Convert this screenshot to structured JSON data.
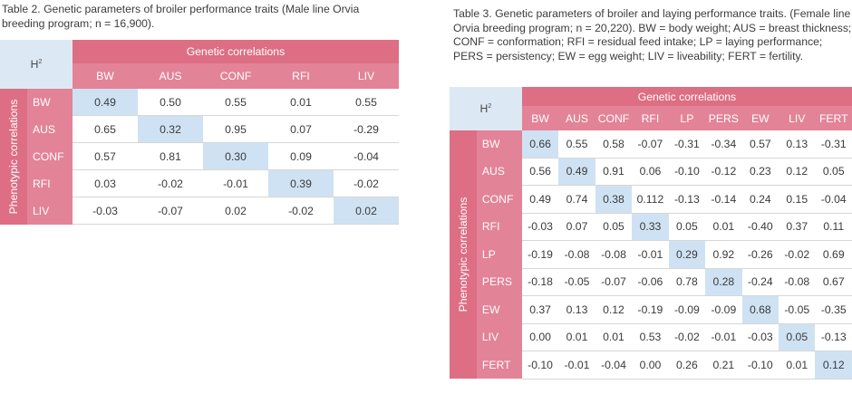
{
  "table2": {
    "caption": "Table 2. Genetic parameters of broiler performance traits (Male line Orvia breeding program; n = 16,900).",
    "h2_label": "H",
    "h2_sup": "2",
    "genetic_label": "Genetic correlations",
    "phenotypic_label": "Phenotypic correlations",
    "columns": [
      "BW",
      "AUS",
      "CONF",
      "RFI",
      "LIV"
    ],
    "rows": [
      {
        "label": "BW",
        "values": [
          "0.49",
          "0.50",
          "0.55",
          "0.01",
          "0.55"
        ]
      },
      {
        "label": "AUS",
        "values": [
          "0.65",
          "0.32",
          "0.95",
          "0.07",
          "-0.29"
        ]
      },
      {
        "label": "CONF",
        "values": [
          "0.57",
          "0.81",
          "0.30",
          "0.09",
          "-0.04"
        ]
      },
      {
        "label": "RFI",
        "values": [
          "0.03",
          "-0.02",
          "-0.01",
          "0.39",
          "-0.02"
        ]
      },
      {
        "label": "LIV",
        "values": [
          "-0.03",
          "-0.07",
          "0.02",
          "-0.02",
          "0.02"
        ]
      }
    ]
  },
  "table3": {
    "caption": "Table 3. Genetic parameters of broiler and laying performance traits. (Female line Orvia breeding program; n = 20,220). BW = body weight; AUS = breast thickness; CONF = conformation; RFI = residual feed intake; LP = laying performance; PERS = persistency; EW = egg weight; LIV = liveability; FERT = fertility.",
    "h2_label": "H",
    "h2_sup": "2",
    "genetic_label": "Genetic correlations",
    "phenotypic_label": "Phenotypic correlations",
    "columns": [
      "BW",
      "AUS",
      "CONF",
      "RFI",
      "LP",
      "PERS",
      "EW",
      "LIV",
      "FERT"
    ],
    "rows": [
      {
        "label": "BW",
        "values": [
          "0.66",
          "0.55",
          "0.58",
          "-0.07",
          "-0.31",
          "-0.34",
          "0.57",
          "0.13",
          "-0.31"
        ]
      },
      {
        "label": "AUS",
        "values": [
          "0.56",
          "0.49",
          "0.91",
          "0.06",
          "-0.10",
          "-0.12",
          "0.23",
          "0.12",
          "0.05"
        ]
      },
      {
        "label": "CONF",
        "values": [
          "0.49",
          "0.74",
          "0.38",
          "0.112",
          "-0.13",
          "-0.14",
          "0.24",
          "0.15",
          "-0.04"
        ]
      },
      {
        "label": "RFI",
        "values": [
          "-0.03",
          "0.07",
          "0.05",
          "0.33",
          "0.05",
          "0.01",
          "-0.40",
          "0.37",
          "0.11"
        ]
      },
      {
        "label": "LP",
        "values": [
          "-0.19",
          "-0.08",
          "-0.08",
          "-0.01",
          "0.29",
          "0.92",
          "-0.26",
          "-0.02",
          "0.69"
        ]
      },
      {
        "label": "PERS",
        "values": [
          "-0.18",
          "-0.05",
          "-0.07",
          "-0.06",
          "0.78",
          "0.28",
          "-0.24",
          "-0.08",
          "0.67"
        ]
      },
      {
        "label": "EW",
        "values": [
          "0.37",
          "0.13",
          "0.12",
          "-0.19",
          "-0.09",
          "-0.09",
          "0.68",
          "-0.05",
          "-0.35"
        ]
      },
      {
        "label": "LIV",
        "values": [
          "0.00",
          "0.01",
          "0.01",
          "0.53",
          "-0.02",
          "-0.01",
          "-0.03",
          "0.05",
          "-0.13"
        ]
      },
      {
        "label": "FERT",
        "values": [
          "-0.10",
          "-0.01",
          "-0.04",
          "0.00",
          "0.26",
          "0.21",
          "-0.10",
          "0.01",
          "0.12"
        ]
      }
    ]
  },
  "colors": {
    "header_dark": "#dd6e83",
    "header_light": "#e38397",
    "diagonal_fill": "#cfe2f3",
    "h2_fill": "#dce8f4"
  }
}
